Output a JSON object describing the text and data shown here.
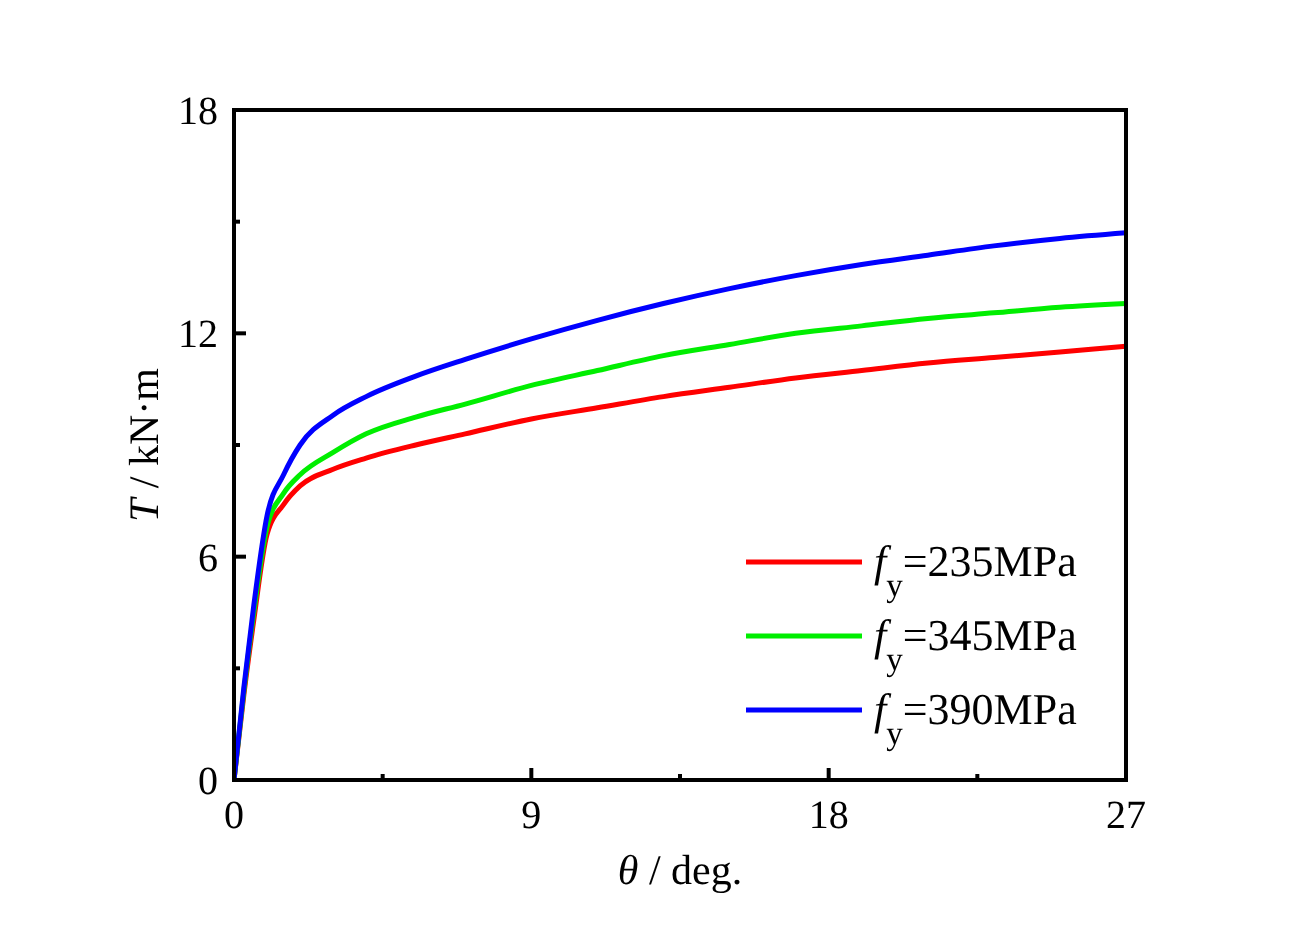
{
  "chart_data": {
    "type": "line",
    "xlabel": "θ / deg.",
    "ylabel": "T / kN·m",
    "xlim": [
      0,
      27
    ],
    "ylim": [
      0,
      18
    ],
    "xticks": [
      0,
      {
        "value": 4.5,
        "label": null
      },
      9,
      {
        "value": 13.5,
        "label": null
      },
      18,
      {
        "value": 22.5,
        "label": null
      },
      27
    ],
    "yticks": [
      0,
      {
        "value": 3,
        "label": null
      },
      6,
      {
        "value": 9,
        "label": null
      },
      12,
      {
        "value": 15,
        "label": null
      },
      18
    ],
    "grid": false,
    "legend": "bottom right",
    "line_style": "solid",
    "x": [
      0,
      0.3,
      0.6,
      1,
      1.5,
      2,
      3,
      4,
      5.5,
      7,
      9,
      11,
      13,
      15,
      17,
      19,
      21,
      23,
      25,
      27
    ],
    "series": [
      {
        "name": "f$_{y}$=235MPa",
        "color": "#ff0000",
        "values": [
          0,
          2.3,
          4.3,
          6.6,
          7.4,
          7.9,
          8.35,
          8.65,
          9.0,
          9.3,
          9.7,
          10.0,
          10.3,
          10.55,
          10.8,
          11.0,
          11.2,
          11.35,
          11.5,
          11.65
        ]
      },
      {
        "name": "f$_{y}$=345MPa",
        "color": "#00ee00",
        "values": [
          0,
          2.4,
          4.5,
          6.8,
          7.7,
          8.2,
          8.8,
          9.3,
          9.75,
          10.1,
          10.6,
          11.0,
          11.4,
          11.7,
          12.0,
          12.2,
          12.4,
          12.55,
          12.7,
          12.8
        ]
      },
      {
        "name": "f$_{y}$=390MPa",
        "color": "#0000ff",
        "values": [
          0,
          2.5,
          4.7,
          7.1,
          8.2,
          9.0,
          9.8,
          10.3,
          10.85,
          11.3,
          11.85,
          12.35,
          12.8,
          13.2,
          13.55,
          13.85,
          14.1,
          14.35,
          14.55,
          14.7
        ]
      }
    ]
  }
}
